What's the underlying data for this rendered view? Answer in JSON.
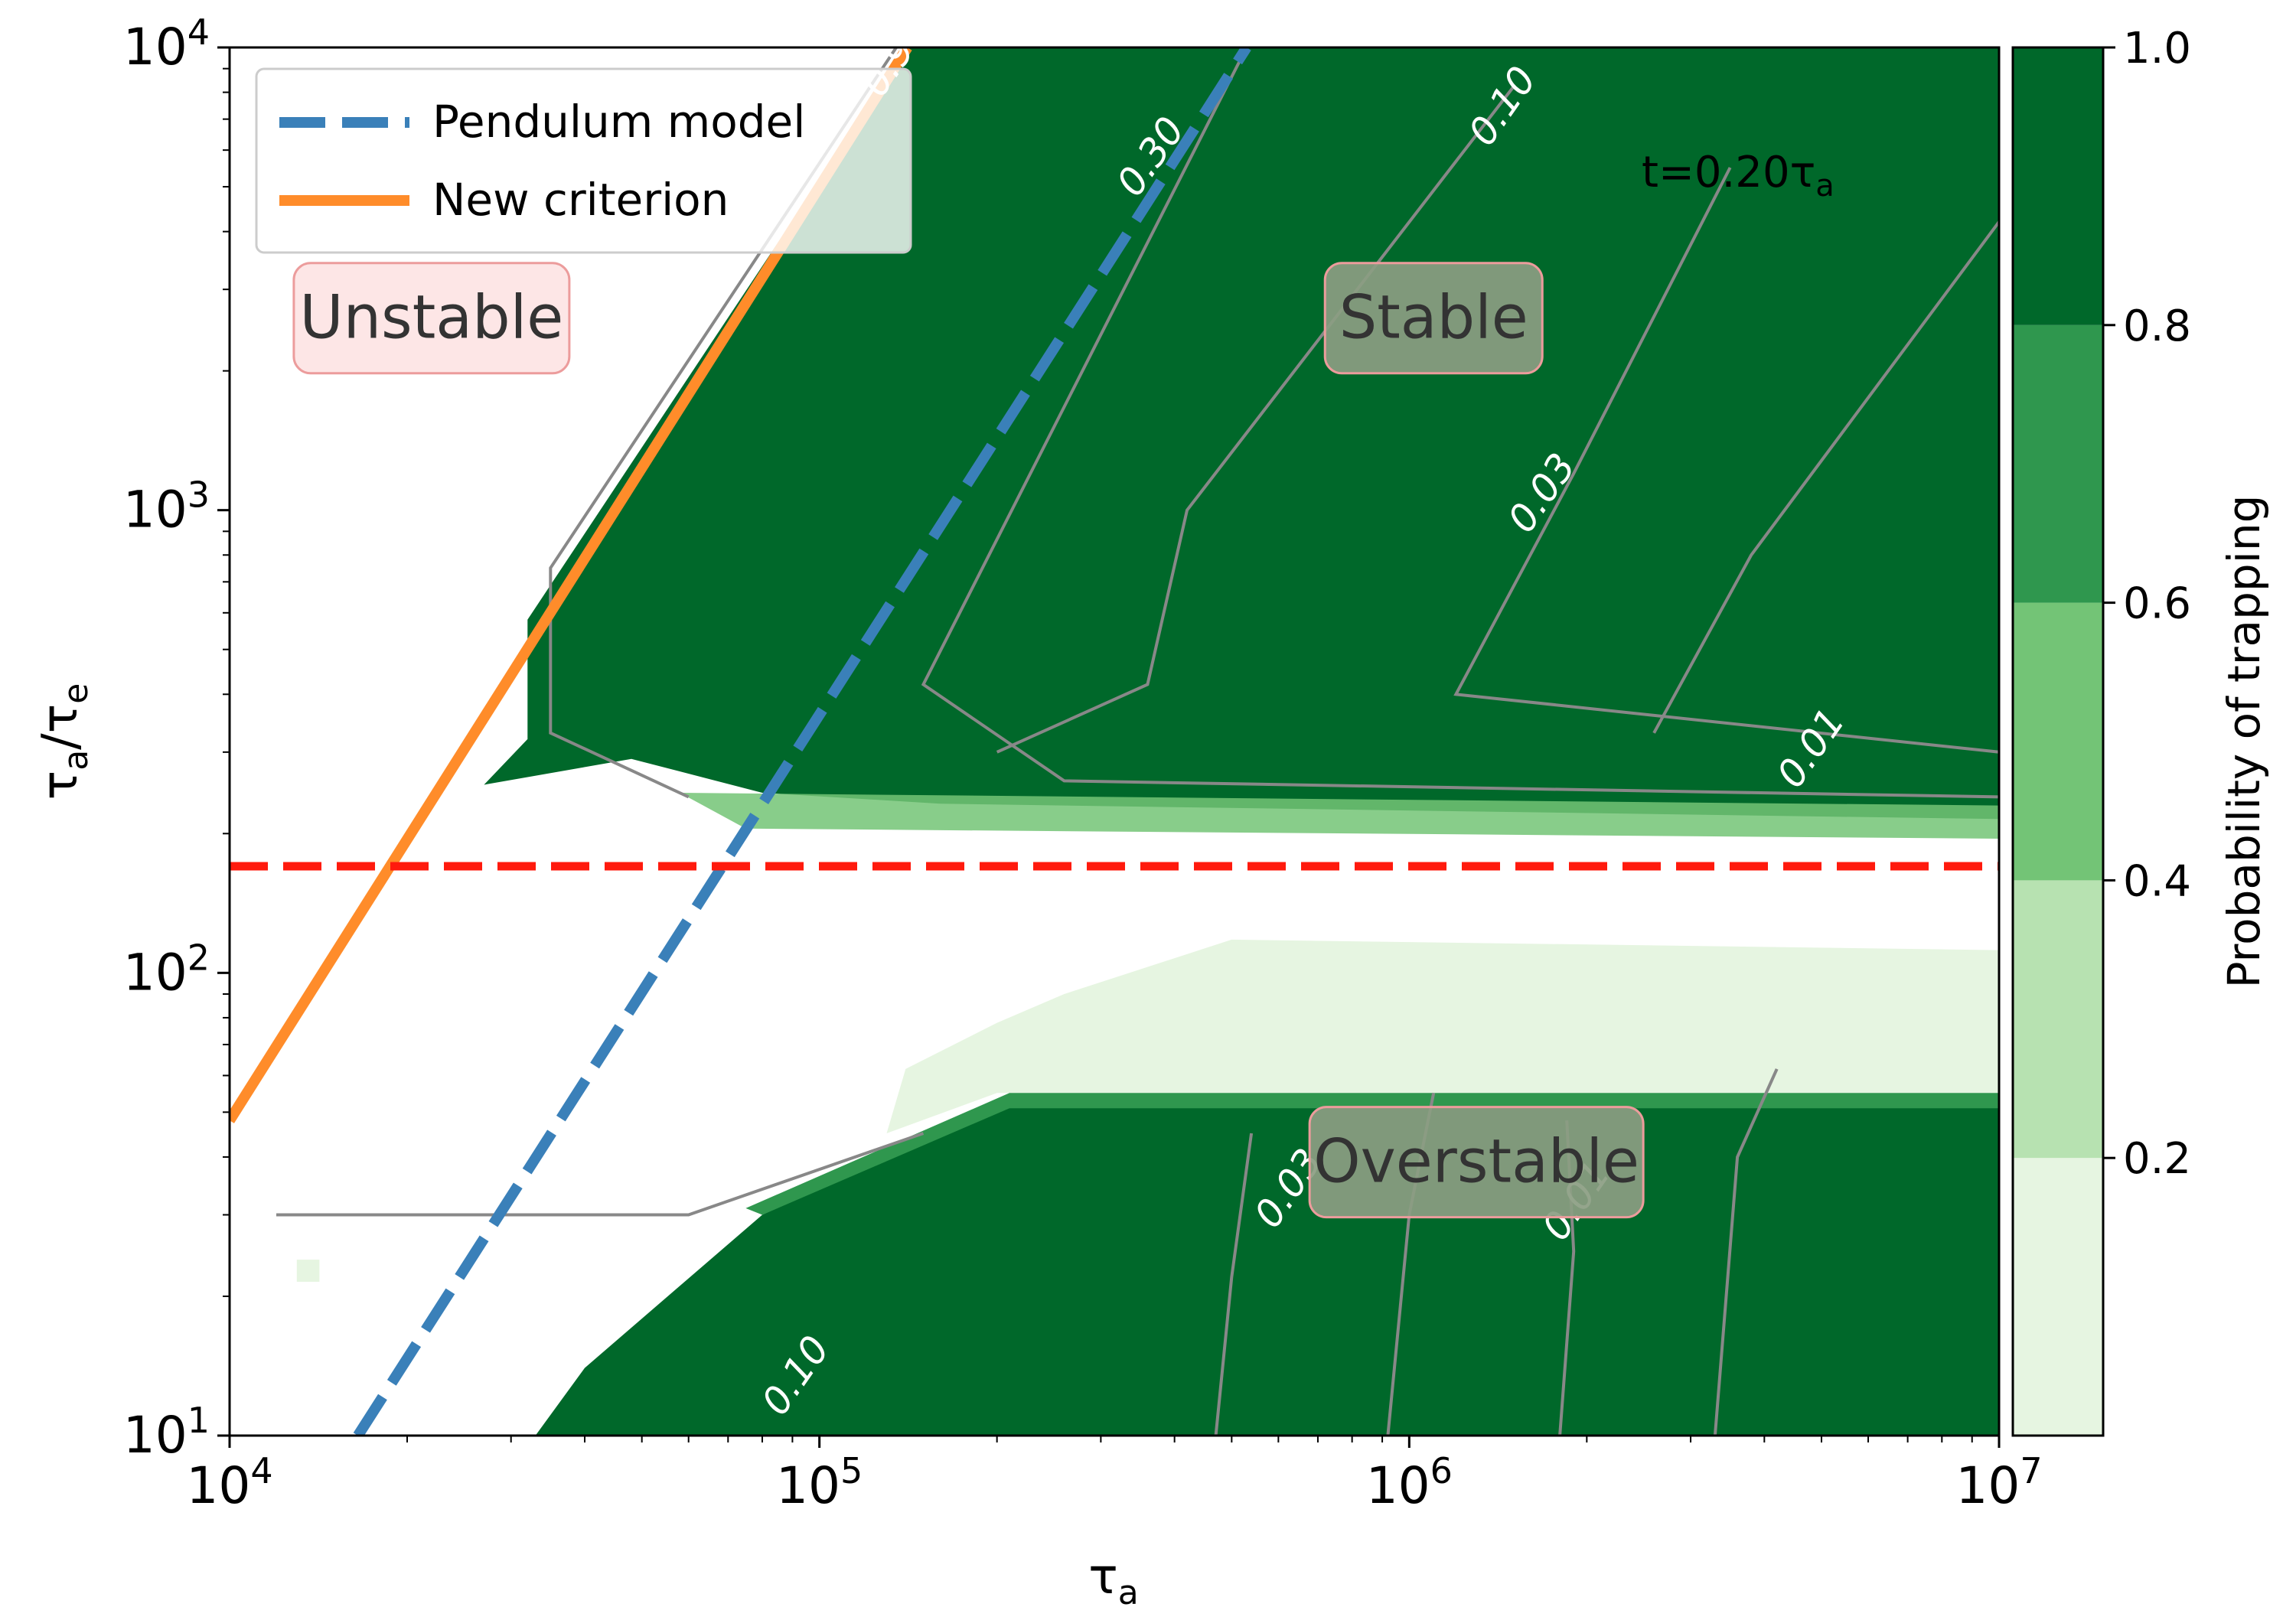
{
  "chart_data": {
    "type": "heatmap",
    "title": "",
    "xlabel": "τ_a",
    "ylabel": "τ_a/τ_e",
    "x_scale": "log",
    "y_scale": "log",
    "xlim": [
      10000,
      10000000
    ],
    "ylim": [
      10,
      10000
    ],
    "x_ticks": [
      10000,
      100000,
      1000000,
      10000000
    ],
    "y_ticks": [
      10,
      100,
      1000,
      10000
    ],
    "x_tick_labels": [
      {
        "base": "10",
        "exp": "4"
      },
      {
        "base": "10",
        "exp": "5"
      },
      {
        "base": "10",
        "exp": "6"
      },
      {
        "base": "10",
        "exp": "7"
      }
    ],
    "y_tick_labels": [
      {
        "base": "10",
        "exp": "1"
      },
      {
        "base": "10",
        "exp": "2"
      },
      {
        "base": "10",
        "exp": "3"
      },
      {
        "base": "10",
        "exp": "4"
      }
    ],
    "time_annotation": {
      "prefix": "t=0.20τ",
      "sub": "a"
    },
    "colorbar": {
      "label": "Probability of trapping",
      "ticks": [
        "0.2",
        "0.4",
        "0.6",
        "0.8",
        "1.0"
      ],
      "levels": [
        {
          "from": 0.0,
          "to": 0.2,
          "color": "#e6f5e1"
        },
        {
          "from": 0.2,
          "to": 0.4,
          "color": "#b7e2b1"
        },
        {
          "from": 0.4,
          "to": 0.6,
          "color": "#73c476"
        },
        {
          "from": 0.6,
          "to": 0.8,
          "color": "#2f974e"
        },
        {
          "from": 0.8,
          "to": 1.0,
          "color": "#00682a"
        }
      ]
    },
    "legend": {
      "placement": "upper-left",
      "entries": [
        {
          "label": "Pendulum model",
          "color": "#3a80b9",
          "style": "dashed"
        },
        {
          "label": "New criterion",
          "color": "#ff8c2a",
          "style": "solid"
        }
      ]
    },
    "lines": {
      "new_criterion": {
        "x": [
          10000,
          141000
        ],
        "y": [
          48,
          10000
        ]
      },
      "pendulum_model": {
        "x": [
          16500,
          530000
        ],
        "y": [
          10,
          10000
        ]
      },
      "threshold": {
        "y": 170,
        "color": "#ff1a0d",
        "style": "dashed"
      }
    },
    "region_labels": [
      {
        "text": "Unstable",
        "x": 22000,
        "y": 2600,
        "box": "#fde4e4"
      },
      {
        "text": "Stable",
        "x": 1100000,
        "y": 2600,
        "box": "#8b9d82"
      },
      {
        "text": "Overstable",
        "x": 1300000,
        "y": 39,
        "box": "#8b9d82"
      }
    ],
    "contour_labels": [
      {
        "text": "0.90",
        "x": 140000,
        "y": 9200
      },
      {
        "text": "0.30",
        "x": 380000,
        "y": 5600
      },
      {
        "text": "0.10",
        "x": 1500000,
        "y": 7200
      },
      {
        "text": "0.03",
        "x": 1750000,
        "y": 1050
      },
      {
        "text": "0.01",
        "x": 5000000,
        "y": 295
      },
      {
        "text": "0.03",
        "x": 650000,
        "y": 33
      },
      {
        "text": "0.01",
        "x": 2000000,
        "y": 31
      },
      {
        "text": "0.10",
        "x": 95000,
        "y": 13
      }
    ]
  }
}
